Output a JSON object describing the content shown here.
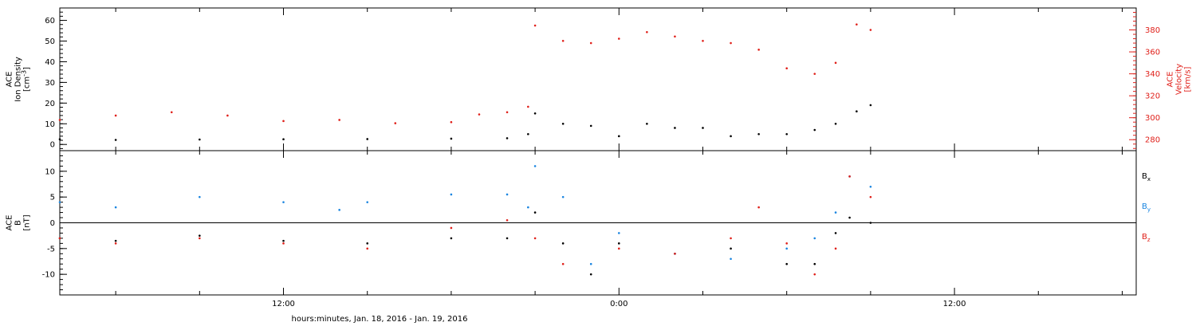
{
  "chart_data": [
    {
      "type": "scatter",
      "x_range": [
        "2016-01-18 04:00",
        "2016-01-19 18:30"
      ],
      "y_label_lines": [
        "ACE",
        "Ion Density",
        "[cm^-3]"
      ],
      "y_range": [
        -3,
        66
      ],
      "y_ticks": [
        "0",
        "10",
        "20",
        "30",
        "40",
        "50",
        "60"
      ],
      "y2_label_lines": [
        "ACE",
        "Velocity",
        "[km/s]"
      ],
      "y2_range": [
        270,
        400
      ],
      "y2_ticks": [
        "280",
        "300",
        "320",
        "340",
        "360",
        "380"
      ],
      "y2_color": "#e0201a",
      "series": [
        {
          "name": "",
          "axis": "left",
          "color": "#000000",
          "x": [
            "2016-01-18 04:00",
            "2016-01-18 06:00",
            "2016-01-18 09:00",
            "2016-01-18 12:00",
            "2016-01-18 15:00",
            "2016-01-18 18:00",
            "2016-01-18 20:00",
            "2016-01-18 20:45",
            "2016-01-18 21:00",
            "2016-01-18 22:00",
            "2016-01-18 23:00",
            "2016-01-19 00:00",
            "2016-01-19 01:00",
            "2016-01-19 02:00",
            "2016-01-19 03:00",
            "2016-01-19 04:00",
            "2016-01-19 05:00",
            "2016-01-19 06:00",
            "2016-01-19 07:00",
            "2016-01-19 07:45",
            "2016-01-19 08:30",
            "2016-01-19 09:00"
          ],
          "y": [
            2.5,
            2.2,
            2.4,
            2.5,
            2.6,
            2.8,
            3,
            5,
            15,
            10,
            9,
            4,
            10,
            8,
            8,
            4,
            5,
            5,
            7,
            10,
            16,
            19
          ]
        },
        {
          "name": "",
          "axis": "right",
          "color": "#e0201a",
          "x": [
            "2016-01-18 04:00",
            "2016-01-18 06:00",
            "2016-01-18 08:00",
            "2016-01-18 10:00",
            "2016-01-18 12:00",
            "2016-01-18 14:00",
            "2016-01-18 16:00",
            "2016-01-18 18:00",
            "2016-01-18 19:00",
            "2016-01-18 20:00",
            "2016-01-18 20:45",
            "2016-01-18 21:00",
            "2016-01-18 22:00",
            "2016-01-18 23:00",
            "2016-01-19 00:00",
            "2016-01-19 01:00",
            "2016-01-19 02:00",
            "2016-01-19 03:00",
            "2016-01-19 04:00",
            "2016-01-19 05:00",
            "2016-01-19 06:00",
            "2016-01-19 07:00",
            "2016-01-19 07:45",
            "2016-01-19 08:30",
            "2016-01-19 09:00"
          ],
          "y": [
            298,
            302,
            305,
            302,
            297,
            298,
            295,
            296,
            303,
            305,
            310,
            384,
            370,
            368,
            372,
            378,
            374,
            370,
            368,
            362,
            345,
            340,
            350,
            385,
            380
          ]
        }
      ]
    },
    {
      "type": "scatter",
      "x_range": [
        "2016-01-18 04:00",
        "2016-01-19 18:30"
      ],
      "y_label_lines": [
        "ACE",
        "B",
        "[nT]"
      ],
      "y_range": [
        -14,
        14
      ],
      "y_ticks": [
        "-10",
        "-5",
        "0",
        "5",
        "10"
      ],
      "zero_line": true,
      "legend_position": "right",
      "series": [
        {
          "name": "B",
          "subscript": "x",
          "color": "#000000",
          "x": [
            "2016-01-18 04:00",
            "2016-01-18 06:00",
            "2016-01-18 09:00",
            "2016-01-18 12:00",
            "2016-01-18 15:00",
            "2016-01-18 18:00",
            "2016-01-18 20:00",
            "2016-01-18 21:00",
            "2016-01-18 22:00",
            "2016-01-18 23:00",
            "2016-01-19 00:00",
            "2016-01-19 02:00",
            "2016-01-19 04:00",
            "2016-01-19 06:00",
            "2016-01-19 07:00",
            "2016-01-19 07:45",
            "2016-01-19 08:15",
            "2016-01-19 09:00"
          ],
          "y": [
            -3,
            -3.5,
            -2.5,
            -3.5,
            -4,
            -3,
            -3,
            2,
            -4,
            -10,
            -4,
            -6,
            -5,
            -8,
            -8,
            -2,
            1,
            0
          ]
        },
        {
          "name": "B",
          "subscript": "y",
          "color": "#1a85e0",
          "x": [
            "2016-01-18 04:00",
            "2016-01-18 06:00",
            "2016-01-18 09:00",
            "2016-01-18 12:00",
            "2016-01-18 14:00",
            "2016-01-18 15:00",
            "2016-01-18 18:00",
            "2016-01-18 20:00",
            "2016-01-18 20:45",
            "2016-01-18 21:00",
            "2016-01-18 22:00",
            "2016-01-18 23:00",
            "2016-01-19 00:00",
            "2016-01-19 02:00",
            "2016-01-19 04:00",
            "2016-01-19 06:00",
            "2016-01-19 07:00",
            "2016-01-19 07:45",
            "2016-01-19 08:15",
            "2016-01-19 09:00"
          ],
          "y": [
            4,
            3,
            5,
            4,
            2.5,
            4,
            5.5,
            5.5,
            3,
            11,
            5,
            -8,
            -2,
            -6,
            -7,
            -5,
            -3,
            2,
            9,
            7
          ]
        },
        {
          "name": "B",
          "subscript": "z",
          "color": "#e0201a",
          "x": [
            "2016-01-18 04:00",
            "2016-01-18 06:00",
            "2016-01-18 09:00",
            "2016-01-18 12:00",
            "2016-01-18 15:00",
            "2016-01-18 18:00",
            "2016-01-18 20:00",
            "2016-01-18 21:00",
            "2016-01-18 22:00",
            "2016-01-19 00:00",
            "2016-01-19 02:00",
            "2016-01-19 04:00",
            "2016-01-19 05:00",
            "2016-01-19 06:00",
            "2016-01-19 07:00",
            "2016-01-19 07:45",
            "2016-01-19 08:15",
            "2016-01-19 09:00"
          ],
          "y": [
            -3,
            -4,
            -3,
            -4,
            -5,
            -1,
            0.5,
            -3,
            -8,
            -5,
            -6,
            -3,
            3,
            -4,
            -10,
            -5,
            9,
            5
          ]
        }
      ]
    }
  ],
  "x_axis": {
    "label": "hours:minutes, Jan. 18, 2016 - Jan. 19, 2016",
    "major_ticks": [
      {
        "x": "2016-01-18 12:00",
        "label": "12:00"
      },
      {
        "x": "2016-01-19 00:00",
        "label": "0:00"
      },
      {
        "x": "2016-01-19 12:00",
        "label": "12:00"
      }
    ],
    "minor_tick_hours": 3
  }
}
